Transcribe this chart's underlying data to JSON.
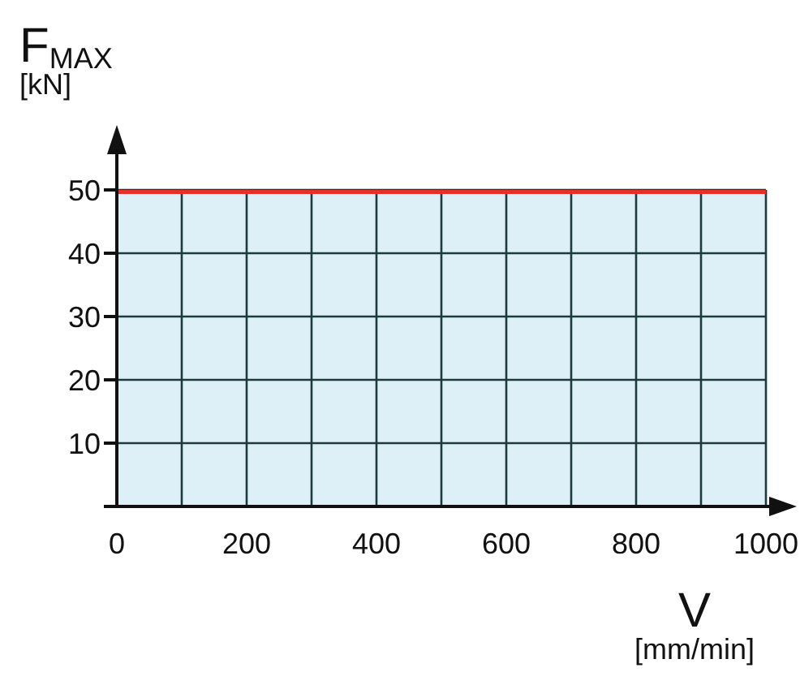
{
  "chart_data": {
    "type": "line",
    "xlabel": "V\n[mm/min]",
    "ylabel": "F$_{MAX}$\n[kN]",
    "x": [
      0,
      1000
    ],
    "series": [
      {
        "type": "line",
        "color": "#e8302a",
        "values": [
          50,
          50
        ]
      }
    ],
    "bands": [
      {
        "axis": "y",
        "from": 0,
        "to": 50,
        "color": "#ddf0f8"
      }
    ],
    "xlim": [
      0,
      1000
    ],
    "xticks": [
      0,
      {
        "value": 100,
        "label": null
      },
      200,
      {
        "value": 300,
        "label": null
      },
      400,
      {
        "value": 500,
        "label": null
      },
      600,
      {
        "value": 700,
        "label": null
      },
      800,
      {
        "value": 900,
        "label": null
      },
      1000
    ],
    "ylim": [
      0,
      50
    ],
    "yticks": [
      {
        "value": 0,
        "label": null
      },
      10,
      20,
      30,
      40,
      50
    ],
    "grid": true,
    "marker": "none",
    "line_style": "solid"
  }
}
